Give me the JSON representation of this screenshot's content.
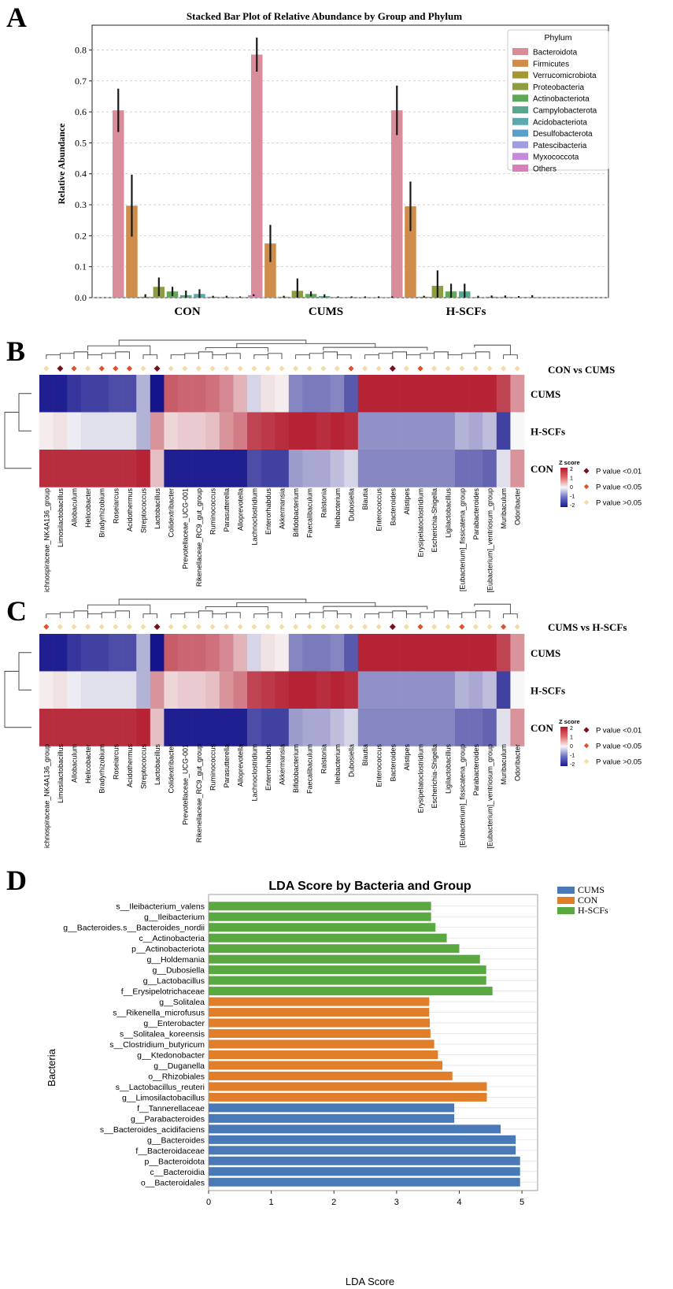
{
  "chart_data": [
    {
      "panel": "A",
      "type": "bar",
      "title": "Stacked Bar Plot of Relative Abundance by Group and Phylum",
      "ylabel": "Relative Abundance",
      "xlabel": "",
      "ylim": [
        0,
        0.88
      ],
      "yticks": [
        "0.0",
        "0.1",
        "0.2",
        "0.3",
        "0.4",
        "0.5",
        "0.6",
        "0.7",
        "0.8"
      ],
      "ytick_values": [
        0,
        0.1,
        0.2,
        0.3,
        0.4,
        0.5,
        0.6,
        0.7,
        0.8
      ],
      "categories": [
        "CON",
        "CUMS",
        "H-SCFs"
      ],
      "legend_title": "Phylum",
      "series": [
        {
          "name": "Bacteroidota",
          "color": "#d98d9b",
          "values": [
            0.605,
            0.785,
            0.605
          ],
          "err": [
            0.07,
            0.055,
            0.08
          ]
        },
        {
          "name": "Firmicutes",
          "color": "#cf8c4a",
          "values": [
            0.297,
            0.175,
            0.295
          ],
          "err": [
            0.1,
            0.06,
            0.08
          ]
        },
        {
          "name": "Verrucomicrobiota",
          "color": "#a39732",
          "values": [
            0.003,
            0.003,
            0.003
          ],
          "err": [
            0.008,
            0.003,
            0.003
          ]
        },
        {
          "name": "Proteobacteria",
          "color": "#8c9e40",
          "values": [
            0.035,
            0.022,
            0.038
          ],
          "err": [
            0.03,
            0.04,
            0.05
          ]
        },
        {
          "name": "Actinobacteriota",
          "color": "#60a85a",
          "values": [
            0.02,
            0.012,
            0.02
          ],
          "err": [
            0.015,
            0.008,
            0.025
          ]
        },
        {
          "name": "Campylobacterota",
          "color": "#58a890",
          "values": [
            0.008,
            0.005,
            0.02
          ],
          "err": [
            0.015,
            0.006,
            0.025
          ]
        },
        {
          "name": "Acidobacteriota",
          "color": "#5aa9b0",
          "values": [
            0.012,
            0.002,
            0.002
          ],
          "err": [
            0.015,
            0.002,
            0.004
          ]
        },
        {
          "name": "Desulfobacterota",
          "color": "#5a9fc9",
          "values": [
            0.003,
            0.002,
            0.003
          ],
          "err": [
            0.003,
            0.002,
            0.004
          ]
        },
        {
          "name": "Patescibacteria",
          "color": "#9e9ee0",
          "values": [
            0.003,
            0.002,
            0.003
          ],
          "err": [
            0.003,
            0.002,
            0.004
          ]
        },
        {
          "name": "Myxococcota",
          "color": "#c58ad8",
          "values": [
            0.002,
            0.002,
            0.002
          ],
          "err": [
            0.002,
            0.002,
            0.003
          ]
        },
        {
          "name": "Others",
          "color": "#d77fb8",
          "values": [
            0.008,
            0.002,
            0.002
          ],
          "err": [
            0.003,
            0.002,
            0.006
          ]
        }
      ]
    },
    {
      "panel": "B",
      "type": "heatmap",
      "comparison": "CON vs CUMS",
      "rows": [
        "CUMS",
        "H-SCFs",
        "CON"
      ],
      "columns": [
        "ichnospiraceae_NK4A136_group",
        "Limosilactobacillus",
        "Allobaculum",
        "Helicobacter",
        "Bradyrhizobium",
        "Roseiarcus",
        "Acidothermus",
        "Streptococcus",
        "Lactobacillus",
        "Colidextribacter",
        "Prevotellaceae_UCG-001",
        "Rikenellaceae_RC9_gut_group",
        "Ruminococcus",
        "Parasutterella",
        "Alloprevotella",
        "Lachnoclostridium",
        "Enterorhabdus",
        "Akkermansia",
        "Bifidobacterium",
        "Faecalibaculum",
        "Ralstonia",
        "Ileibacterium",
        "Dubosiella",
        "Blautia",
        "Enterococcus",
        "Bacteroides",
        "Alistipes",
        "Erysipelatoclostridium",
        "Escherichia-Shigella",
        "Ligilactobacillus",
        "[Eubacterium]_fissicatena_group",
        "Parabacteroides",
        "[Eubacterium]_ventriosum_group",
        "Muribaculum",
        "Odoribacter"
      ],
      "markers": [
        2,
        0,
        1,
        2,
        1,
        1,
        1,
        2,
        0,
        2,
        2,
        2,
        2,
        2,
        2,
        2,
        2,
        2,
        2,
        2,
        2,
        2,
        1,
        2,
        2,
        0,
        2,
        1,
        2,
        2,
        2,
        2,
        2,
        2,
        2
      ],
      "values": [
        [
          -1.9,
          -1.9,
          -1.7,
          -1.6,
          -1.6,
          -1.5,
          -1.5,
          -0.6,
          -2.1,
          1.4,
          1.3,
          1.3,
          1.2,
          1.0,
          0.6,
          -0.3,
          0.2,
          0.1,
          -1.0,
          -1.1,
          -1.1,
          -1.0,
          -1.4,
          1.9,
          1.9,
          1.9,
          1.9,
          1.9,
          1.9,
          1.9,
          1.9,
          1.9,
          1.9,
          1.6,
          0.9
        ],
        [
          0.1,
          0.2,
          -0.1,
          -0.2,
          -0.2,
          -0.2,
          -0.2,
          -0.6,
          0.9,
          0.3,
          0.4,
          0.4,
          0.5,
          0.9,
          1.1,
          1.6,
          1.7,
          1.8,
          1.9,
          1.9,
          1.8,
          1.9,
          1.8,
          -0.9,
          -0.9,
          -0.9,
          -0.9,
          -0.9,
          -0.9,
          -0.9,
          -0.6,
          -0.7,
          -0.5,
          -1.6,
          0.0
        ],
        [
          1.8,
          1.8,
          1.8,
          1.8,
          1.8,
          1.8,
          1.8,
          1.9,
          0.5,
          -1.9,
          -1.9,
          -1.9,
          -1.9,
          -1.9,
          -1.9,
          -1.5,
          -1.6,
          -1.6,
          -0.8,
          -0.7,
          -0.7,
          -0.5,
          -0.3,
          -1.0,
          -1.0,
          -1.0,
          -1.0,
          -1.0,
          -1.0,
          -1.0,
          -1.2,
          -1.2,
          -1.3,
          -0.2,
          0.9
        ]
      ],
      "colorbar_label": "Z score",
      "colorbar_ticks": [
        "2",
        "1",
        "0",
        "-1",
        "-2"
      ],
      "legend": [
        "P value <0.01",
        "P value <0.05",
        "P value >0.05"
      ]
    },
    {
      "panel": "C",
      "type": "heatmap",
      "comparison": "CUMS vs H-SCFs",
      "rows": [
        "CUMS",
        "H-SCFs",
        "CON"
      ],
      "columns": [
        "ichnospiraceae_NK4A136_group",
        "Limosilactobacillus",
        "Allobaculum",
        "Helicobacter",
        "Bradyrhizobium",
        "Roseiarcus",
        "Acidothermus",
        "Streptococcus",
        "Lactobacillus",
        "Colidextribacter",
        "Prevotellaceae_UCG-001",
        "Rikenellaceae_RC9_gut_group",
        "Ruminococcus",
        "Parasutterella",
        "Alloprevotella",
        "Lachnoclostridium",
        "Enterorhabdus",
        "Akkermansia",
        "Bifidobacterium",
        "Faecalibaculum",
        "Ralstonia",
        "Ileibacterium",
        "Dubosiella",
        "Blautia",
        "Enterococcus",
        "Bacteroides",
        "Alistipes",
        "Erysipelatoclostridium",
        "Escherichia-Shigella",
        "Ligilactobacillus",
        "[Eubacterium]_fissicatena_group",
        "Parabacteroides",
        "[Eubacterium]_ventriosum_group",
        "Muribaculum",
        "Odoribacter"
      ],
      "markers": [
        1,
        2,
        2,
        2,
        2,
        2,
        2,
        2,
        0,
        2,
        2,
        2,
        2,
        2,
        2,
        2,
        2,
        2,
        2,
        2,
        2,
        2,
        2,
        2,
        2,
        0,
        2,
        1,
        2,
        2,
        1,
        2,
        2,
        1,
        2
      ],
      "values": [
        [
          -1.9,
          -1.9,
          -1.7,
          -1.6,
          -1.6,
          -1.5,
          -1.5,
          -0.6,
          -2.1,
          1.4,
          1.3,
          1.3,
          1.2,
          1.0,
          0.6,
          -0.3,
          0.2,
          0.1,
          -1.0,
          -1.1,
          -1.1,
          -1.0,
          -1.4,
          1.9,
          1.9,
          1.9,
          1.9,
          1.9,
          1.9,
          1.9,
          1.9,
          1.9,
          1.9,
          1.6,
          0.9
        ],
        [
          0.1,
          0.2,
          -0.1,
          -0.2,
          -0.2,
          -0.2,
          -0.2,
          -0.6,
          0.9,
          0.3,
          0.4,
          0.4,
          0.5,
          0.9,
          1.1,
          1.6,
          1.7,
          1.8,
          1.9,
          1.9,
          1.8,
          1.9,
          1.8,
          -0.9,
          -0.9,
          -0.9,
          -0.9,
          -0.9,
          -0.9,
          -0.9,
          -0.6,
          -0.7,
          -0.5,
          -1.6,
          0.0
        ],
        [
          1.8,
          1.8,
          1.8,
          1.8,
          1.8,
          1.8,
          1.8,
          1.9,
          0.5,
          -1.9,
          -1.9,
          -1.9,
          -1.9,
          -1.9,
          -1.9,
          -1.5,
          -1.6,
          -1.6,
          -0.8,
          -0.7,
          -0.7,
          -0.5,
          -0.3,
          -1.0,
          -1.0,
          -1.0,
          -1.0,
          -1.0,
          -1.0,
          -1.0,
          -1.2,
          -1.2,
          -1.3,
          -0.2,
          0.9
        ]
      ],
      "colorbar_label": "Z score",
      "colorbar_ticks": [
        "2",
        "1",
        "0",
        "-1",
        "-2"
      ],
      "legend": [
        "P value <0.01",
        "P value <0.05",
        "P value >0.05"
      ]
    },
    {
      "panel": "D",
      "type": "bar",
      "orientation": "horizontal",
      "title": "LDA Score by Bacteria and Group",
      "xlabel": "LDA Score",
      "ylabel": "Bacteria",
      "xlim": [
        0,
        5.25
      ],
      "xticks": [
        "0",
        "1",
        "2",
        "3",
        "4",
        "5"
      ],
      "xtick_values": [
        0,
        1,
        2,
        3,
        4,
        5
      ],
      "legend": [
        {
          "name": "CUMS",
          "color": "#4a79b8"
        },
        {
          "name": "CON",
          "color": "#e07e2a"
        },
        {
          "name": "H-SCFs",
          "color": "#5aa840"
        }
      ],
      "bars": [
        {
          "label": "s__Ileibacterium_valens",
          "value": 3.55,
          "group": "H-SCFs"
        },
        {
          "label": "g__Ileibacterium",
          "value": 3.55,
          "group": "H-SCFs"
        },
        {
          "label": "g__Bacteroides.s__Bacteroides_nordii",
          "value": 3.62,
          "group": "H-SCFs"
        },
        {
          "label": "c__Actinobacteria",
          "value": 3.8,
          "group": "H-SCFs"
        },
        {
          "label": "p__Actinobacteriota",
          "value": 4.0,
          "group": "H-SCFs"
        },
        {
          "label": "g__Holdemania",
          "value": 4.33,
          "group": "H-SCFs"
        },
        {
          "label": "g__Dubosiella",
          "value": 4.43,
          "group": "H-SCFs"
        },
        {
          "label": "g__Lactobacillus",
          "value": 4.43,
          "group": "H-SCFs"
        },
        {
          "label": "f__Erysipelotrichaceae",
          "value": 4.53,
          "group": "H-SCFs"
        },
        {
          "label": "g__Solitalea",
          "value": 3.52,
          "group": "CON"
        },
        {
          "label": "s__Rikenella_microfusus",
          "value": 3.52,
          "group": "CON"
        },
        {
          "label": "g__Enterobacter",
          "value": 3.53,
          "group": "CON"
        },
        {
          "label": "s__Solitalea_koreensis",
          "value": 3.54,
          "group": "CON"
        },
        {
          "label": "s__Clostridium_butyricum",
          "value": 3.6,
          "group": "CON"
        },
        {
          "label": "g__Ktedonobacter",
          "value": 3.66,
          "group": "CON"
        },
        {
          "label": "g__Duganella",
          "value": 3.73,
          "group": "CON"
        },
        {
          "label": "o__Rhizobiales",
          "value": 3.89,
          "group": "CON"
        },
        {
          "label": "s__Lactobacillus_reuteri",
          "value": 4.44,
          "group": "CON"
        },
        {
          "label": "g__Limosilactobacillus",
          "value": 4.44,
          "group": "CON"
        },
        {
          "label": "f__Tannerellaceae",
          "value": 3.92,
          "group": "CUMS"
        },
        {
          "label": "g__Parabacteroides",
          "value": 3.92,
          "group": "CUMS"
        },
        {
          "label": "s__Bacteroides_acidifaciens",
          "value": 4.66,
          "group": "CUMS"
        },
        {
          "label": "g__Bacteroides",
          "value": 4.9,
          "group": "CUMS"
        },
        {
          "label": "f__Bacteroidaceae",
          "value": 4.9,
          "group": "CUMS"
        },
        {
          "label": "p__Bacteroidota",
          "value": 4.97,
          "group": "CUMS"
        },
        {
          "label": "c__Bacteroidia",
          "value": 4.97,
          "group": "CUMS"
        },
        {
          "label": "o__Bacteroidales",
          "value": 4.97,
          "group": "CUMS"
        }
      ]
    }
  ],
  "panel_labels": [
    "A",
    "B",
    "C",
    "D"
  ]
}
